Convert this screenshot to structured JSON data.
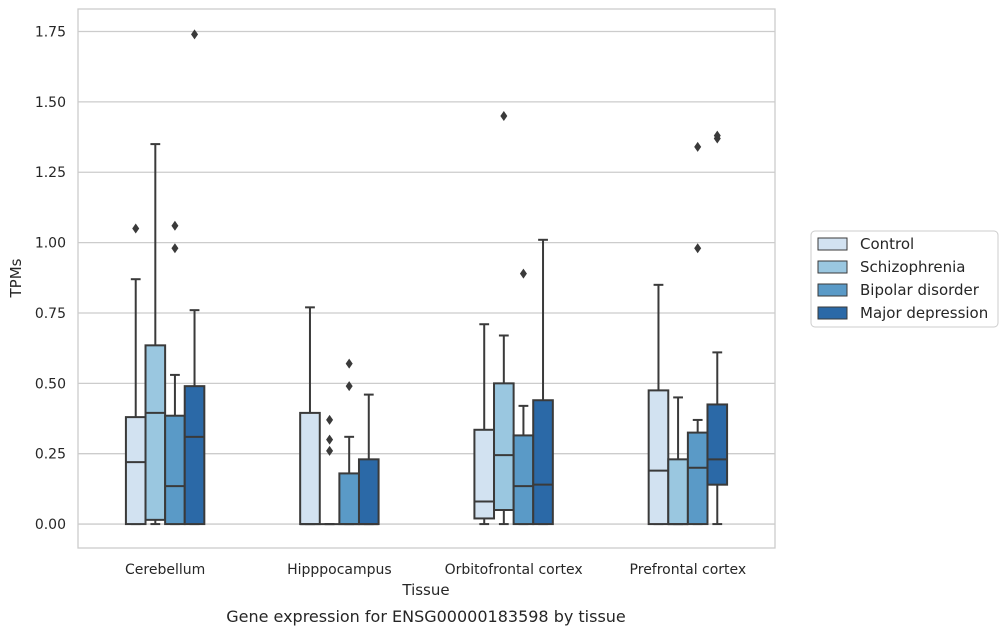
{
  "chart_data": {
    "type": "box",
    "title": "",
    "caption": "Gene expression for ENSG00000183598 by tissue",
    "xlabel": "Tissue",
    "ylabel": "TPMs",
    "ylim": [
      -0.085,
      1.83
    ],
    "yticks": [
      0.0,
      0.25,
      0.5,
      0.75,
      1.0,
      1.25,
      1.5,
      1.75
    ],
    "ytick_labels": [
      "0.00",
      "0.25",
      "0.50",
      "0.75",
      "1.00",
      "1.25",
      "1.50",
      "1.75"
    ],
    "grid": "horizontal",
    "legend_position": "right",
    "categories": [
      "Cerebellum",
      "Hipppocampus",
      "Orbitofrontal cortex",
      "Prefrontal cortex"
    ],
    "series": [
      {
        "name": "Control",
        "color": "#d2e2f1",
        "boxes": [
          {
            "whisker_low": 0.0,
            "q1": 0.0,
            "median": 0.22,
            "q3": 0.38,
            "whisker_high": 0.87,
            "outliers": [
              1.05
            ]
          },
          {
            "whisker_low": 0.0,
            "q1": 0.0,
            "median": 0.0,
            "q3": 0.395,
            "whisker_high": 0.77,
            "outliers": []
          },
          {
            "whisker_low": 0.0,
            "q1": 0.02,
            "median": 0.08,
            "q3": 0.335,
            "whisker_high": 0.71,
            "outliers": []
          },
          {
            "whisker_low": 0.0,
            "q1": 0.0,
            "median": 0.19,
            "q3": 0.475,
            "whisker_high": 0.85,
            "outliers": []
          }
        ]
      },
      {
        "name": "Schizophrenia",
        "color": "#9ac7e0",
        "boxes": [
          {
            "whisker_low": 0.0,
            "q1": 0.015,
            "median": 0.395,
            "q3": 0.635,
            "whisker_high": 1.35,
            "outliers": []
          },
          {
            "whisker_low": 0.0,
            "q1": 0.0,
            "median": 0.0,
            "q3": 0.0,
            "whisker_high": 0.0,
            "outliers": [
              0.26,
              0.3,
              0.37
            ]
          },
          {
            "whisker_low": 0.0,
            "q1": 0.05,
            "median": 0.245,
            "q3": 0.5,
            "whisker_high": 0.67,
            "outliers": [
              1.45
            ]
          },
          {
            "whisker_low": 0.0,
            "q1": 0.0,
            "median": 0.0,
            "q3": 0.23,
            "whisker_high": 0.45,
            "outliers": []
          }
        ]
      },
      {
        "name": "Bipolar disorder",
        "color": "#5a9ac7",
        "boxes": [
          {
            "whisker_low": 0.0,
            "q1": 0.0,
            "median": 0.135,
            "q3": 0.385,
            "whisker_high": 0.53,
            "outliers": [
              0.98,
              1.06
            ]
          },
          {
            "whisker_low": 0.0,
            "q1": 0.0,
            "median": 0.0,
            "q3": 0.18,
            "whisker_high": 0.31,
            "outliers": [
              0.49,
              0.57
            ]
          },
          {
            "whisker_low": 0.0,
            "q1": 0.0,
            "median": 0.135,
            "q3": 0.315,
            "whisker_high": 0.42,
            "outliers": [
              0.89
            ]
          },
          {
            "whisker_low": 0.0,
            "q1": 0.0,
            "median": 0.2,
            "q3": 0.325,
            "whisker_high": 0.37,
            "outliers": [
              0.98,
              1.34
            ]
          }
        ]
      },
      {
        "name": "Major depression",
        "color": "#2b69a7",
        "boxes": [
          {
            "whisker_low": 0.0,
            "q1": 0.0,
            "median": 0.31,
            "q3": 0.49,
            "whisker_high": 0.76,
            "outliers": [
              1.74
            ]
          },
          {
            "whisker_low": 0.0,
            "q1": 0.0,
            "median": 0.0,
            "q3": 0.23,
            "whisker_high": 0.46,
            "outliers": []
          },
          {
            "whisker_low": 0.0,
            "q1": 0.0,
            "median": 0.14,
            "q3": 0.44,
            "whisker_high": 1.01,
            "outliers": []
          },
          {
            "whisker_low": 0.0,
            "q1": 0.14,
            "median": 0.23,
            "q3": 0.425,
            "whisker_high": 0.61,
            "outliers": [
              1.37,
              1.38
            ]
          }
        ]
      }
    ]
  }
}
